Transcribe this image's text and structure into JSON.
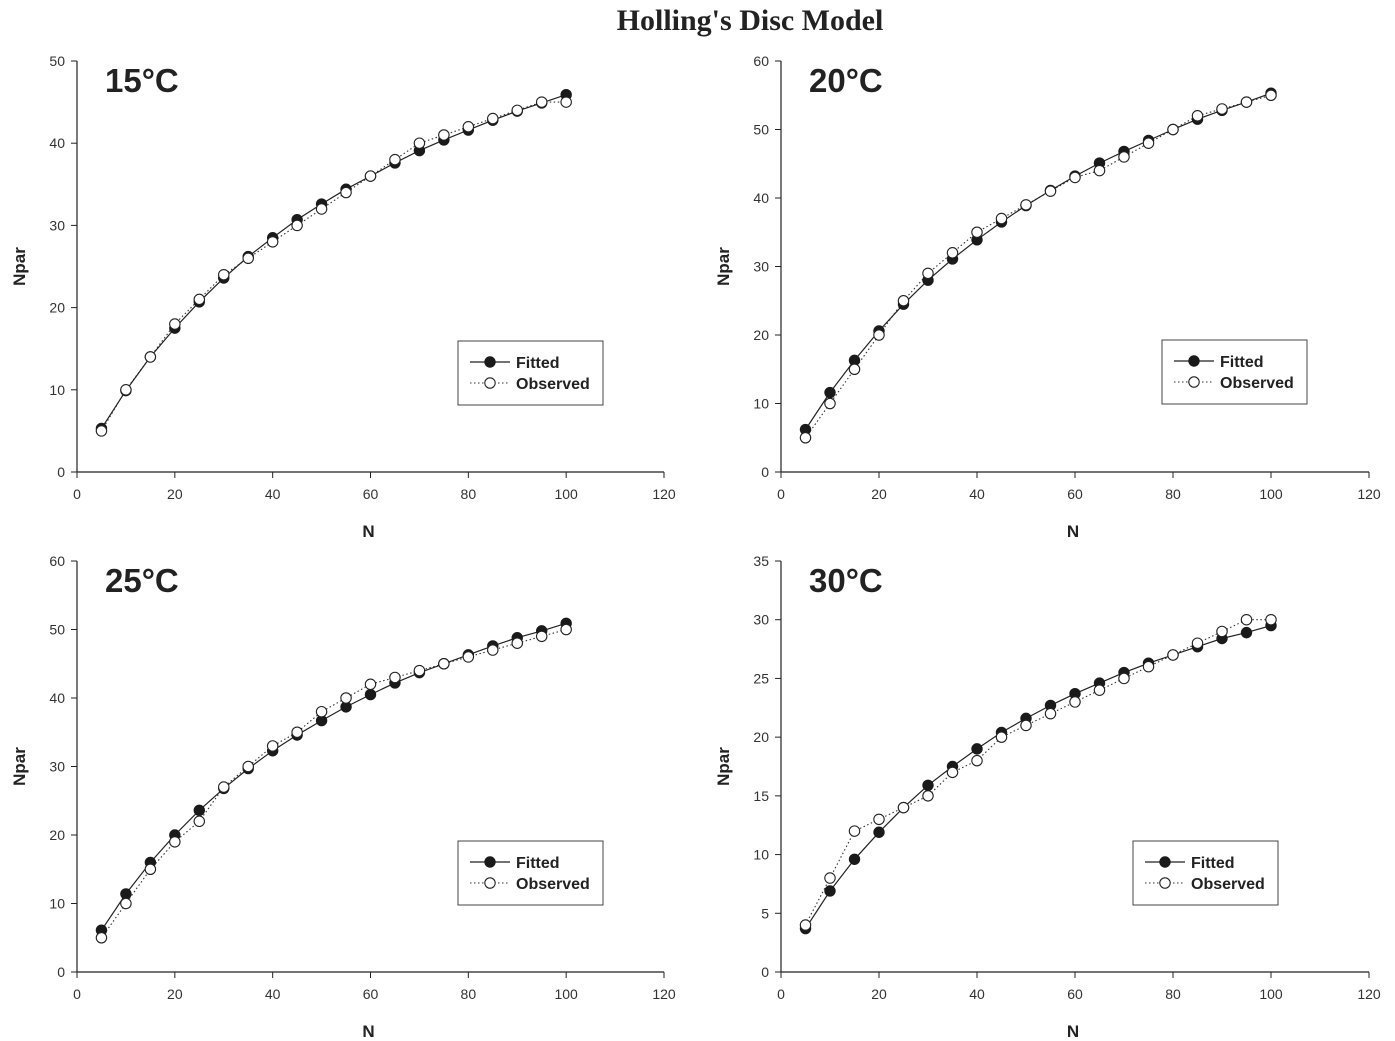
{
  "figure_title": "Holling's Disc Model",
  "chart_data": [
    {
      "type": "line",
      "panel_label": "15°C",
      "xlabel": "N",
      "ylabel": "Npar",
      "xlim": [
        0,
        120
      ],
      "ylim": [
        0,
        50
      ],
      "xticks": [
        0,
        20,
        40,
        60,
        80,
        100,
        120
      ],
      "yticks": [
        0,
        10,
        20,
        30,
        40,
        50
      ],
      "x": [
        5,
        10,
        15,
        20,
        25,
        30,
        35,
        40,
        45,
        50,
        55,
        60,
        65,
        70,
        75,
        80,
        85,
        90,
        95,
        100
      ],
      "series": [
        {
          "name": "Fitted",
          "marker": "filled-circle",
          "line": "solid",
          "values": [
            5.3,
            9.9,
            14.0,
            17.5,
            20.7,
            23.6,
            26.2,
            28.5,
            30.7,
            32.6,
            34.4,
            36.0,
            37.6,
            39.1,
            40.4,
            41.6,
            42.8,
            43.9,
            44.9,
            45.9
          ]
        },
        {
          "name": "Observed",
          "marker": "open-circle",
          "line": "dotted",
          "values": [
            5,
            10,
            14,
            18,
            21,
            24,
            26,
            28,
            30,
            32,
            34,
            36,
            38,
            40,
            41,
            42,
            43,
            44,
            45,
            45
          ]
        }
      ],
      "legend_position": "lower-right"
    },
    {
      "type": "line",
      "panel_label": "20°C",
      "xlabel": "N",
      "ylabel": "Npar",
      "xlim": [
        0,
        120
      ],
      "ylim": [
        0,
        60
      ],
      "xticks": [
        0,
        20,
        40,
        60,
        80,
        100,
        120
      ],
      "yticks": [
        0,
        10,
        20,
        30,
        40,
        50,
        60
      ],
      "x": [
        5,
        10,
        15,
        20,
        25,
        30,
        35,
        40,
        45,
        50,
        55,
        60,
        65,
        70,
        75,
        80,
        85,
        90,
        95,
        100
      ],
      "series": [
        {
          "name": "Fitted",
          "marker": "filled-circle",
          "line": "solid",
          "values": [
            6.2,
            11.6,
            16.3,
            20.6,
            24.5,
            28.0,
            31.1,
            33.9,
            36.5,
            38.9,
            41.1,
            43.2,
            45.1,
            46.8,
            48.4,
            50.0,
            51.5,
            52.8,
            54.0,
            55.3
          ]
        },
        {
          "name": "Observed",
          "marker": "open-circle",
          "line": "dotted",
          "values": [
            5,
            10,
            15,
            20,
            25,
            29,
            32,
            35,
            37,
            39,
            41,
            43,
            44,
            46,
            48,
            50,
            52,
            53,
            54,
            55
          ]
        }
      ],
      "legend_position": "lower-right"
    },
    {
      "type": "line",
      "panel_label": "25°C",
      "xlabel": "N",
      "ylabel": "Npar",
      "xlim": [
        0,
        120
      ],
      "ylim": [
        0,
        60
      ],
      "xticks": [
        0,
        20,
        40,
        60,
        80,
        100,
        120
      ],
      "yticks": [
        0,
        10,
        20,
        30,
        40,
        50,
        60
      ],
      "x": [
        5,
        10,
        15,
        20,
        25,
        30,
        35,
        40,
        45,
        50,
        55,
        60,
        65,
        70,
        75,
        80,
        85,
        90,
        95,
        100
      ],
      "series": [
        {
          "name": "Fitted",
          "marker": "filled-circle",
          "line": "solid",
          "values": [
            6.1,
            11.4,
            16.0,
            20.0,
            23.6,
            26.8,
            29.7,
            32.3,
            34.6,
            36.7,
            38.7,
            40.5,
            42.2,
            43.7,
            45.0,
            46.3,
            47.6,
            48.8,
            49.8,
            50.9
          ]
        },
        {
          "name": "Observed",
          "marker": "open-circle",
          "line": "dotted",
          "values": [
            5,
            10,
            15,
            19,
            22,
            27,
            30,
            33,
            35,
            38,
            40,
            42,
            43,
            44,
            45,
            46,
            47,
            48,
            49,
            50
          ]
        }
      ],
      "legend_position": "lower-right"
    },
    {
      "type": "line",
      "panel_label": "30°C",
      "xlabel": "N",
      "ylabel": "Npar",
      "xlim": [
        0,
        120
      ],
      "ylim": [
        0,
        35
      ],
      "xticks": [
        0,
        20,
        40,
        60,
        80,
        100,
        120
      ],
      "yticks": [
        0,
        5,
        10,
        15,
        20,
        25,
        30,
        35
      ],
      "x": [
        5,
        10,
        15,
        20,
        25,
        30,
        35,
        40,
        45,
        50,
        55,
        60,
        65,
        70,
        75,
        80,
        85,
        90,
        95,
        100
      ],
      "series": [
        {
          "name": "Fitted",
          "marker": "filled-circle",
          "line": "solid",
          "values": [
            3.7,
            6.9,
            9.6,
            11.9,
            14.0,
            15.9,
            17.5,
            19.0,
            20.4,
            21.6,
            22.7,
            23.7,
            24.6,
            25.5,
            26.3,
            27.0,
            27.7,
            28.4,
            28.9,
            29.5
          ]
        },
        {
          "name": "Observed",
          "marker": "open-circle",
          "line": "dotted",
          "values": [
            4,
            8,
            12,
            13,
            14,
            15,
            17,
            18,
            20,
            21,
            22,
            23,
            24,
            25,
            26,
            27,
            28,
            29,
            30,
            30
          ]
        }
      ],
      "legend_position": "lower-right"
    }
  ]
}
